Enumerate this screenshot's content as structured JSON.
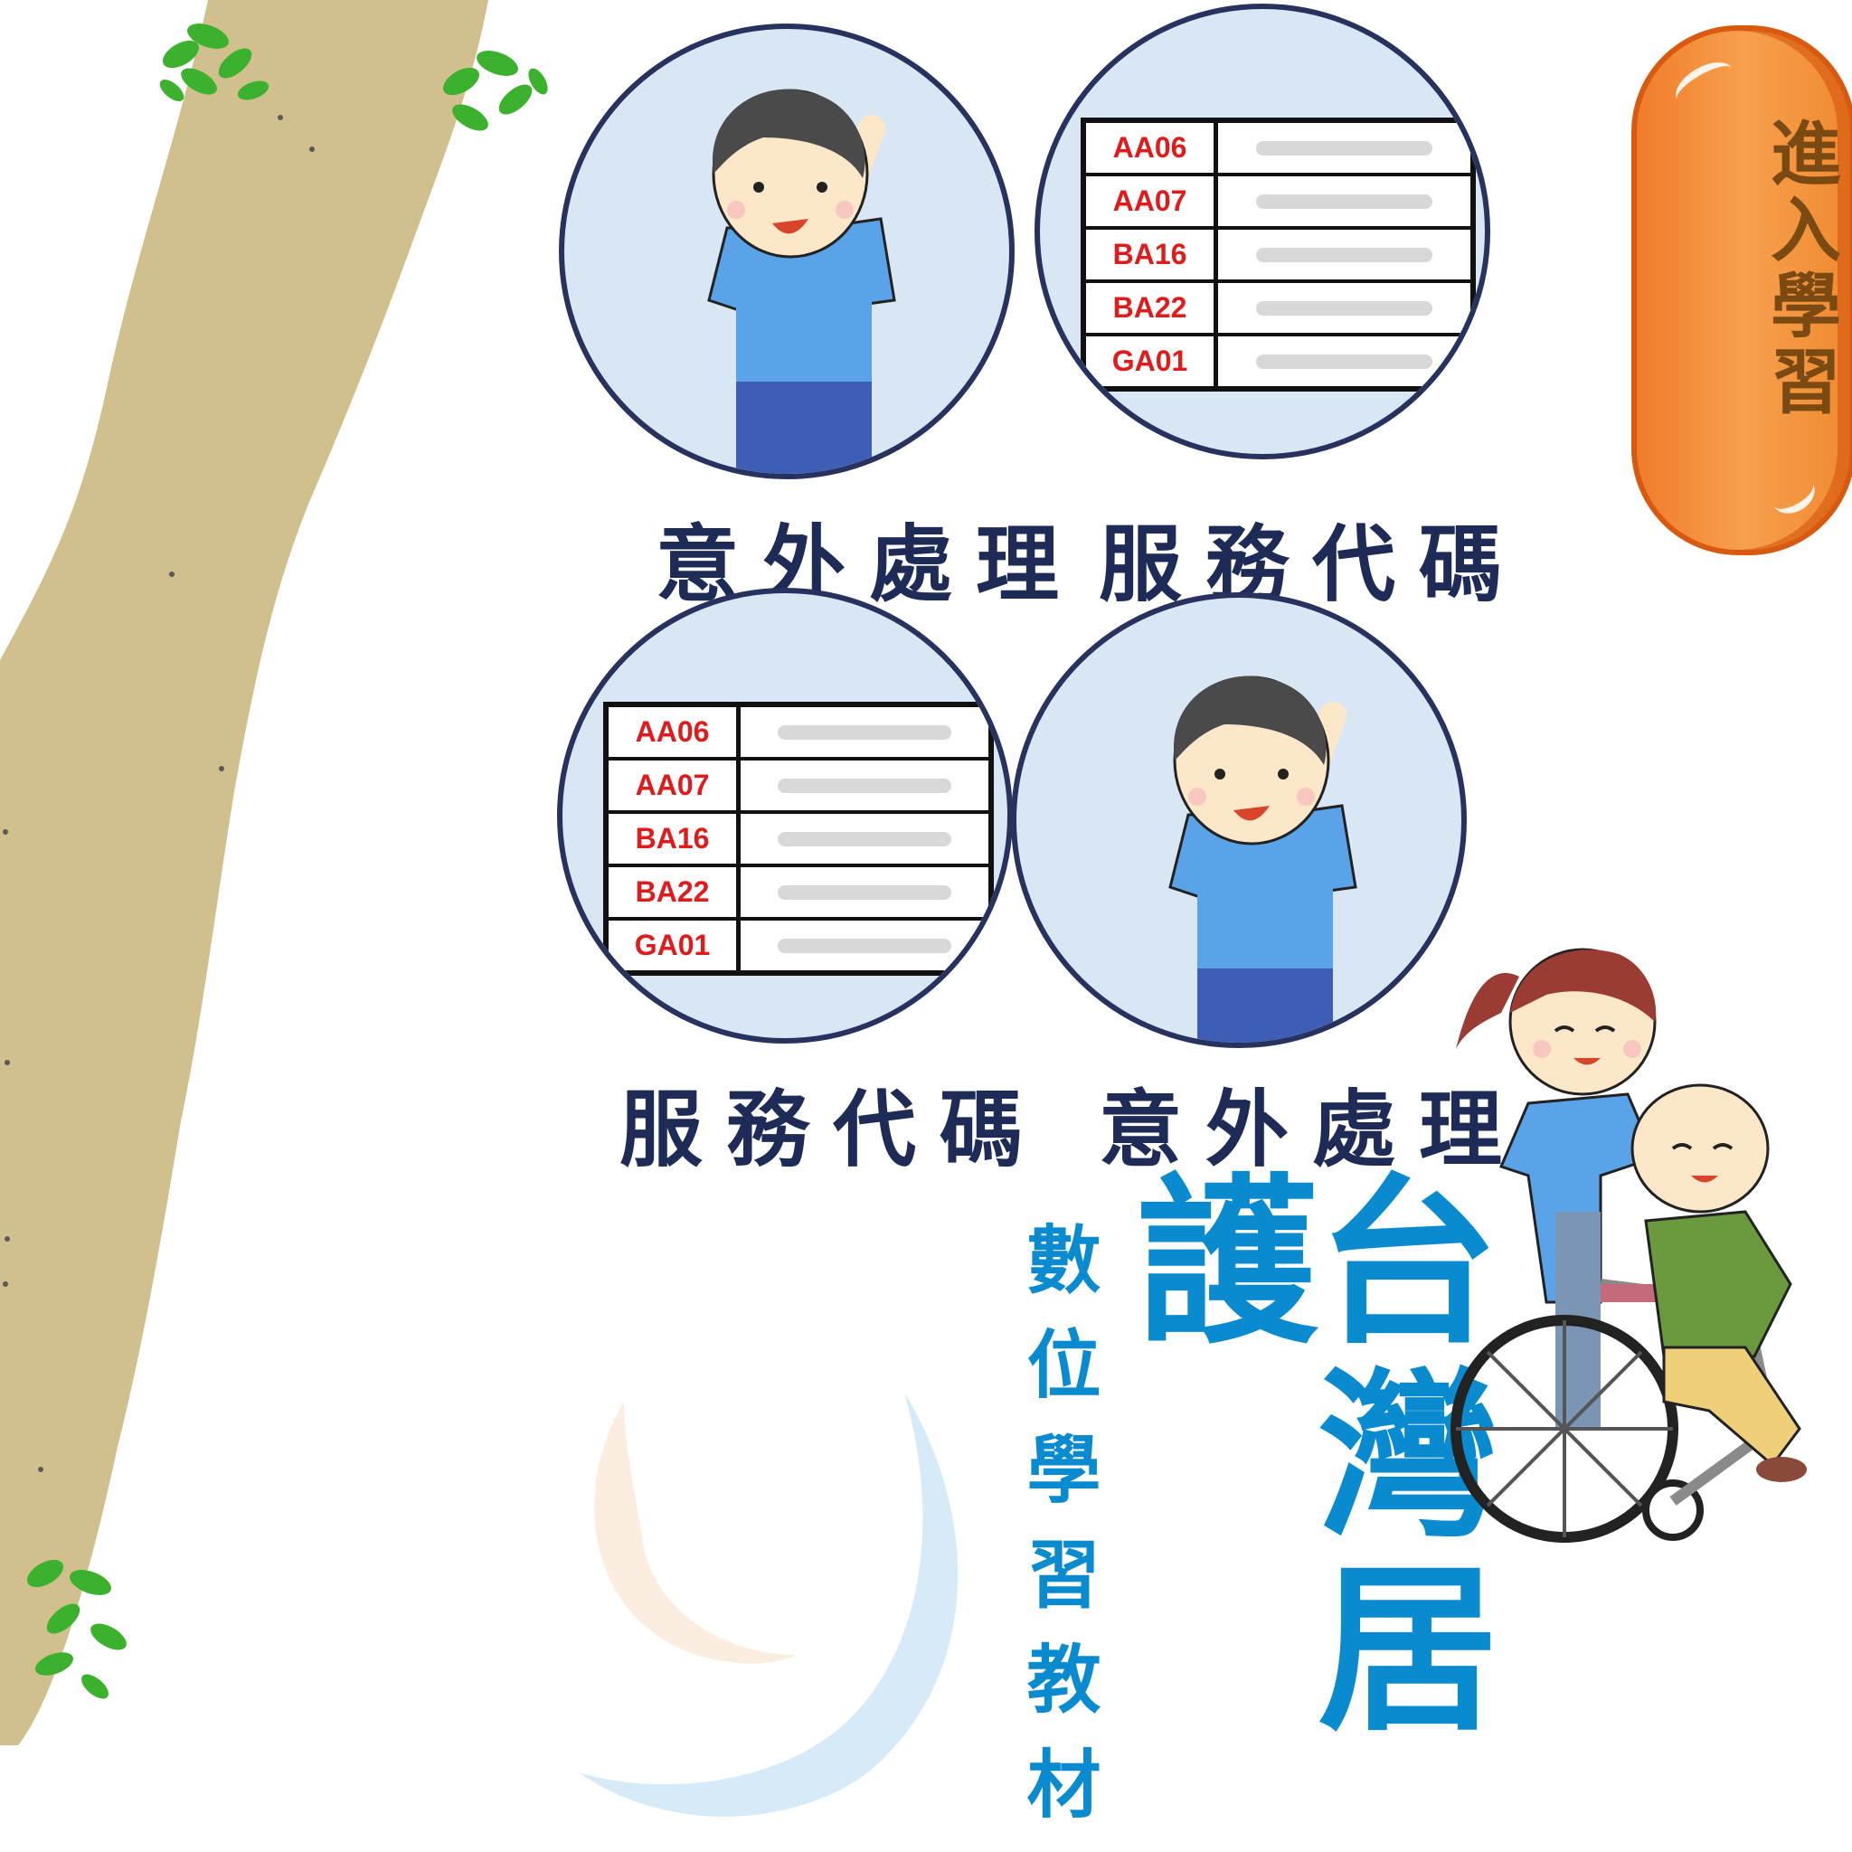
{
  "enter_button": {
    "label": "進入學習"
  },
  "cards": [
    {
      "label": "意外處理",
      "kind": "staff"
    },
    {
      "label": "服務代碼",
      "kind": "table"
    },
    {
      "label": "服務代碼",
      "kind": "table"
    },
    {
      "label": "意外處理",
      "kind": "staff"
    }
  ],
  "service_codes": [
    "AA06",
    "AA07",
    "BA16",
    "BA22",
    "GA01"
  ],
  "title": {
    "main": "台灣居護",
    "sub": "數位學習教材"
  },
  "colors": {
    "circle_fill": "#d9e7f5",
    "circle_border": "#27325f",
    "label_text": "#1e2b57",
    "title_blue": "#0a8bd0",
    "button_orange": "#f59a45",
    "trunk": "#d1bf8e",
    "code_red": "#e01b1b"
  }
}
